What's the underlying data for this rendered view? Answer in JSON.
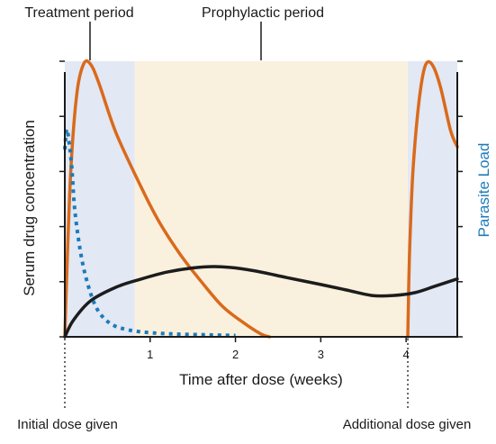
{
  "chart_data": {
    "type": "line",
    "title": "",
    "xlabel": "Time after dose (weeks)",
    "ylabel_left": "Serum drug concentration",
    "ylabel_right": "Parasite Load",
    "xlim": [
      0,
      4.6
    ],
    "xticks": [
      1,
      2,
      3,
      4
    ],
    "xticklabels": [
      "1",
      "2",
      "3",
      "4"
    ],
    "ylim": [
      0,
      100
    ],
    "left_axis_tick_count": 6,
    "right_axis_tick_count": 6,
    "regions": [
      {
        "label": "Treatment period",
        "x_start": 0,
        "x_end": 0.82,
        "color": "#e2e8f4"
      },
      {
        "label": "Prophylactic period",
        "x_start": 0.82,
        "x_end": 4.02,
        "color": "#faf0de"
      },
      {
        "label": "",
        "x_start": 4.02,
        "x_end": 4.6,
        "color": "#e2e8f4"
      }
    ],
    "markers": [
      {
        "label": "Initial dose given",
        "x": 0
      },
      {
        "label": "Additional dose given",
        "x": 4.02
      }
    ],
    "series": [
      {
        "style": "solid",
        "color": "#d96a1c",
        "points": [
          [
            0,
            0
          ],
          [
            0.02,
            20
          ],
          [
            0.07,
            60
          ],
          [
            0.14,
            88
          ],
          [
            0.22,
            99
          ],
          [
            0.3,
            99
          ],
          [
            0.4,
            92
          ],
          [
            0.6,
            74
          ],
          [
            0.9,
            54
          ],
          [
            1.1,
            42
          ],
          [
            1.35,
            30
          ],
          [
            1.6,
            20
          ],
          [
            1.85,
            11
          ],
          [
            2.1,
            5
          ],
          [
            2.3,
            1
          ],
          [
            2.4,
            0
          ]
        ]
      },
      {
        "style": "solid",
        "color": "#d96a1c",
        "points": [
          [
            4.02,
            0
          ],
          [
            4.04,
            30
          ],
          [
            4.08,
            60
          ],
          [
            4.15,
            85
          ],
          [
            4.22,
            98
          ],
          [
            4.3,
            99
          ],
          [
            4.4,
            91
          ],
          [
            4.52,
            75
          ],
          [
            4.6,
            69
          ]
        ]
      },
      {
        "style": "solid",
        "color": "#1c1c1c",
        "points": [
          [
            0,
            0
          ],
          [
            0.1,
            6
          ],
          [
            0.3,
            13
          ],
          [
            0.6,
            18
          ],
          [
            0.9,
            21
          ],
          [
            1.2,
            23.5
          ],
          [
            1.5,
            25
          ],
          [
            1.75,
            25.5
          ],
          [
            2.0,
            25
          ],
          [
            2.3,
            23.5
          ],
          [
            2.6,
            21.5
          ],
          [
            3.0,
            19
          ],
          [
            3.3,
            17
          ],
          [
            3.6,
            15
          ],
          [
            3.85,
            15
          ],
          [
            4.1,
            16
          ],
          [
            4.35,
            18.5
          ],
          [
            4.6,
            21
          ]
        ]
      },
      {
        "style": "dotted",
        "color": "#1c7bb8",
        "points": [
          [
            0,
            68
          ],
          [
            0.02,
            75
          ],
          [
            0.04,
            73
          ],
          [
            0.08,
            62
          ],
          [
            0.12,
            45
          ],
          [
            0.2,
            28
          ],
          [
            0.3,
            16
          ],
          [
            0.4,
            9
          ],
          [
            0.55,
            4.5
          ],
          [
            0.75,
            2.5
          ],
          [
            1.0,
            1.5
          ],
          [
            1.3,
            1
          ],
          [
            1.7,
            0.7
          ],
          [
            2.0,
            0.5
          ]
        ]
      }
    ]
  }
}
